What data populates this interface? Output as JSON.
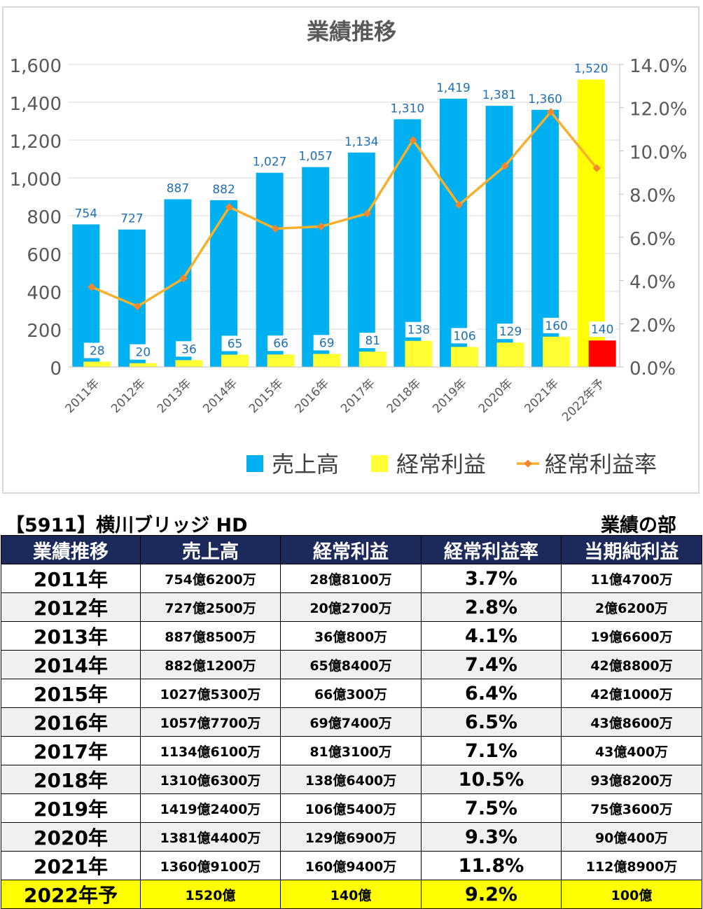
{
  "chart_data": {
    "type": "bar",
    "title": "業績推移",
    "categories": [
      "2011年",
      "2012年",
      "2013年",
      "2014年",
      "2015年",
      "2016年",
      "2017年",
      "2018年",
      "2019年",
      "2020年",
      "2021年",
      "2022年予"
    ],
    "series": [
      {
        "name": "売上高",
        "type": "bar",
        "axis": "left",
        "values": [
          754,
          727,
          887,
          882,
          1027,
          1057,
          1134,
          1310,
          1419,
          1381,
          1360,
          1520
        ],
        "labels": [
          "754",
          "727",
          "887",
          "882",
          "1,027",
          "1,057",
          "1,134",
          "1,310",
          "1,419",
          "1,381",
          "1,360",
          "1,520"
        ],
        "color": "#00b0f0",
        "forecast_color": "#ffff00"
      },
      {
        "name": "経常利益",
        "type": "bar",
        "axis": "left",
        "values": [
          28,
          20,
          36,
          65,
          66,
          69,
          81,
          138,
          106,
          129,
          160,
          140
        ],
        "labels": [
          "28",
          "20",
          "36",
          "65",
          "66",
          "69",
          "81",
          "138",
          "106",
          "129",
          "160",
          "140"
        ],
        "color": "#ffff33",
        "forecast_color": "#ff0000"
      },
      {
        "name": "経常利益率",
        "type": "line",
        "axis": "right",
        "values": [
          3.7,
          2.8,
          4.1,
          7.4,
          6.4,
          6.5,
          7.1,
          10.5,
          7.5,
          9.3,
          11.8,
          9.2
        ],
        "color": "#f6b02c"
      }
    ],
    "left_axis": {
      "ylim": [
        0,
        1600
      ],
      "ticks": [
        "0",
        "200",
        "400",
        "600",
        "800",
        "1,000",
        "1,200",
        "1,400",
        "1,600"
      ]
    },
    "right_axis": {
      "ylim": [
        0,
        14
      ],
      "ticks": [
        "0.0%",
        "2.0%",
        "4.0%",
        "6.0%",
        "8.0%",
        "10.0%",
        "12.0%",
        "14.0%"
      ]
    },
    "grid": true,
    "legend": "bottom-right",
    "legend_items": [
      "売上高",
      "経常利益",
      "経常利益率"
    ]
  },
  "company_heading": "【5911】横川ブリッジ HD",
  "section_heading": "業績の部",
  "table": {
    "headers": [
      "業績推移",
      "売上高",
      "経常利益",
      "経常利益率",
      "当期純利益"
    ],
    "rows": [
      [
        "2011年",
        "754億6200万",
        "28億8100万",
        "3.7%",
        "11億4700万"
      ],
      [
        "2012年",
        "727億2500万",
        "20億2700万",
        "2.8%",
        "2億6200万"
      ],
      [
        "2013年",
        "887億8500万",
        "36億800万",
        "4.1%",
        "19億6600万"
      ],
      [
        "2014年",
        "882億1200万",
        "65億8400万",
        "7.4%",
        "42億8800万"
      ],
      [
        "2015年",
        "1027億5300万",
        "66億300万",
        "6.4%",
        "42億1000万"
      ],
      [
        "2016年",
        "1057億7700万",
        "69億7400万",
        "6.5%",
        "43億8600万"
      ],
      [
        "2017年",
        "1134億6100万",
        "81億3100万",
        "7.1%",
        "43億400万"
      ],
      [
        "2018年",
        "1310億6300万",
        "138億6400万",
        "10.5%",
        "93億8200万"
      ],
      [
        "2019年",
        "1419億2400万",
        "106億5400万",
        "7.5%",
        "75億3600万"
      ],
      [
        "2020年",
        "1381億4400万",
        "129億6900万",
        "9.3%",
        "90億400万"
      ],
      [
        "2021年",
        "1360億9100万",
        "160億9400万",
        "11.8%",
        "112億8900万"
      ],
      [
        "2022年予",
        "1520億",
        "140億",
        "9.2%",
        "100億"
      ]
    ]
  }
}
